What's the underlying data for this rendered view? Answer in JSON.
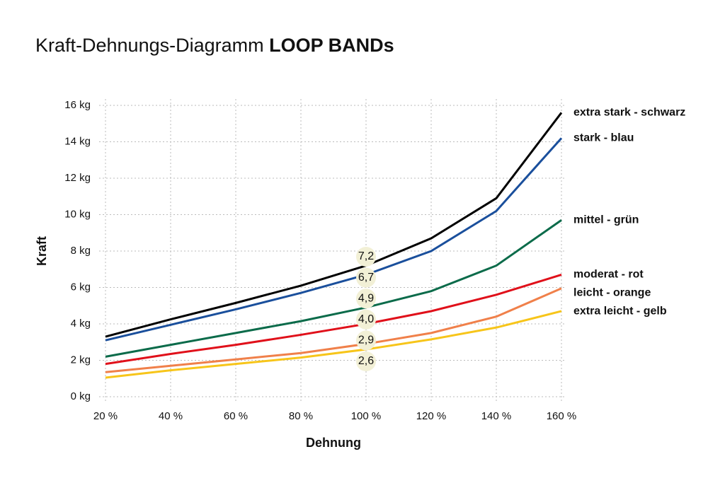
{
  "chart_data": {
    "type": "line",
    "title": "Kraft-Dehnungs-Diagramm",
    "title_emphasis": "LOOP BANDs",
    "x_label": "Dehnung",
    "y_label": "Kraft",
    "x": [
      20,
      40,
      60,
      80,
      100,
      120,
      140,
      160
    ],
    "xlim": [
      20,
      160
    ],
    "xticks": [
      {
        "value": 20,
        "label": "20 %"
      },
      {
        "value": 40,
        "label": "40 %"
      },
      {
        "value": 60,
        "label": "60 %"
      },
      {
        "value": 80,
        "label": "80 %"
      },
      {
        "value": 100,
        "label": "100 %"
      },
      {
        "value": 120,
        "label": "120 %"
      },
      {
        "value": 140,
        "label": "140 %"
      },
      {
        "value": 160,
        "label": "160 %"
      }
    ],
    "ylim": [
      0,
      16
    ],
    "yticks": [
      {
        "value": 0,
        "label": "0 kg"
      },
      {
        "value": 2,
        "label": "2 kg"
      },
      {
        "value": 4,
        "label": "4 kg"
      },
      {
        "value": 6,
        "label": "6 kg"
      },
      {
        "value": 8,
        "label": "8 kg"
      },
      {
        "value": 10,
        "label": "10 kg"
      },
      {
        "value": 12,
        "label": "12 kg"
      },
      {
        "value": 14,
        "label": "14 kg"
      },
      {
        "value": 16,
        "label": "16 kg"
      }
    ],
    "grid": true,
    "series": [
      {
        "name": "extra stark - schwarz",
        "color": "#000000",
        "values": [
          3.3,
          4.25,
          5.15,
          6.1,
          7.2,
          8.7,
          10.9,
          15.6
        ],
        "value_labels": [
          null,
          null,
          null,
          null,
          "7,2",
          null,
          null,
          null
        ]
      },
      {
        "name": "stark - blau",
        "color": "#1a4f9c",
        "values": [
          3.1,
          3.95,
          4.8,
          5.7,
          6.7,
          8.0,
          10.2,
          14.2
        ],
        "value_labels": [
          null,
          null,
          null,
          null,
          "6,7",
          null,
          null,
          null
        ]
      },
      {
        "name": "mittel - grün",
        "color": "#0b6b4a",
        "values": [
          2.2,
          2.85,
          3.5,
          4.15,
          4.9,
          5.8,
          7.2,
          9.7
        ],
        "value_labels": [
          null,
          null,
          null,
          null,
          "4,9",
          null,
          null,
          null
        ]
      },
      {
        "name": "moderat - rot",
        "color": "#e0101a",
        "values": [
          1.8,
          2.35,
          2.85,
          3.4,
          4.0,
          4.7,
          5.6,
          6.7
        ],
        "value_labels": [
          null,
          null,
          null,
          null,
          "4,0",
          null,
          null,
          null
        ]
      },
      {
        "name": "leicht - orange",
        "color": "#f0804a",
        "values": [
          1.35,
          1.7,
          2.05,
          2.4,
          2.9,
          3.5,
          4.4,
          5.95
        ],
        "value_labels": [
          null,
          null,
          null,
          null,
          "2,9",
          null,
          null,
          null
        ]
      },
      {
        "name": "extra leicht - gelb",
        "color": "#f7c51a",
        "values": [
          1.05,
          1.45,
          1.8,
          2.15,
          2.6,
          3.15,
          3.8,
          4.7
        ],
        "value_labels": [
          null,
          null,
          null,
          null,
          "2,6",
          null,
          null,
          null
        ]
      }
    ]
  }
}
